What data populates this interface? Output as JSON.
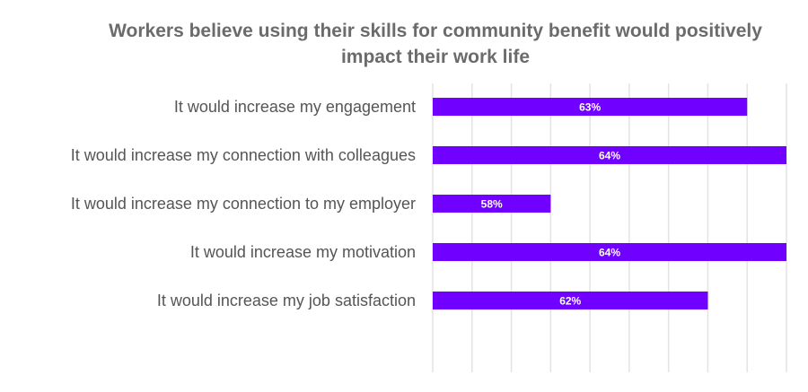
{
  "chart_data": {
    "type": "bar",
    "orientation": "horizontal",
    "title": "Workers believe using their skills for community benefit would positively impact their work life",
    "categories": [
      "It would increase my engagement",
      "It would increase my connection with colleagues",
      "It would increase my connection to my employer",
      "It would increase my motivation",
      "It would increase my job satisfaction"
    ],
    "values": [
      63,
      64,
      58,
      64,
      62
    ],
    "data_labels": [
      "63%",
      "64%",
      "58%",
      "64%",
      "62%"
    ],
    "xlim": [
      55,
      64
    ],
    "grid_step": 1,
    "grid": true,
    "x_tick_labels_shown": false,
    "bar_color": "#7000ff",
    "gridline_color": "#e3e3e3"
  }
}
